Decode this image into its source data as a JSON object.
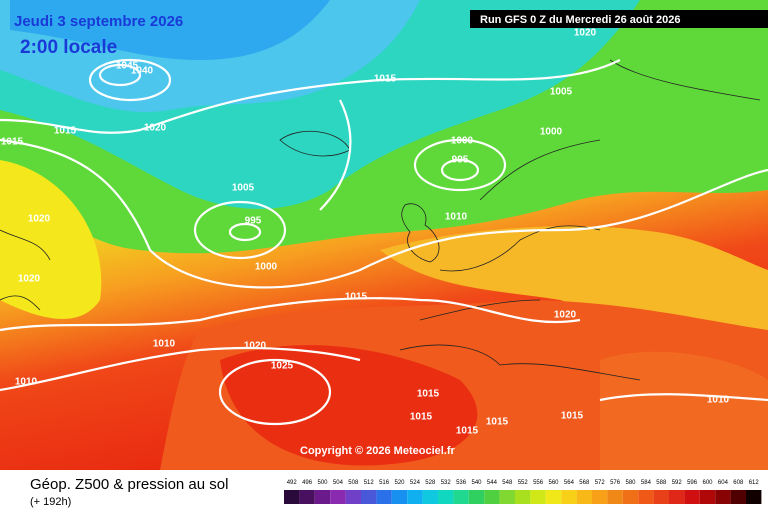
{
  "header": {
    "date": "Jeudi 3 septembre 2026",
    "time": "2:00 locale",
    "run": "Run GFS 0 Z du Mercredi 26 août 2026"
  },
  "isobar_labels": [
    "1020",
    "1015",
    "1005",
    "1000",
    "1000",
    "995",
    "1015",
    "1015",
    "1020",
    "1005",
    "995",
    "1000",
    "1010",
    "1020",
    "1020",
    "1015",
    "1020",
    "1010",
    "1020",
    "1025",
    "1010",
    "1015",
    "1015",
    "1015",
    "1015",
    "1015",
    "1010",
    "1040",
    "1045"
  ],
  "copyright": "Copyright © 2026 Meteociel.fr",
  "footer": {
    "title": "Géop. Z500 & pression au sol",
    "subtitle": "(+ 192h)"
  },
  "scale": [
    "492",
    "496",
    "500",
    "504",
    "508",
    "512",
    "516",
    "520",
    "524",
    "528",
    "532",
    "536",
    "540",
    "544",
    "548",
    "552",
    "556",
    "560",
    "564",
    "568",
    "572",
    "576",
    "580",
    "584",
    "588",
    "592",
    "596",
    "600",
    "604",
    "608",
    "612"
  ]
}
